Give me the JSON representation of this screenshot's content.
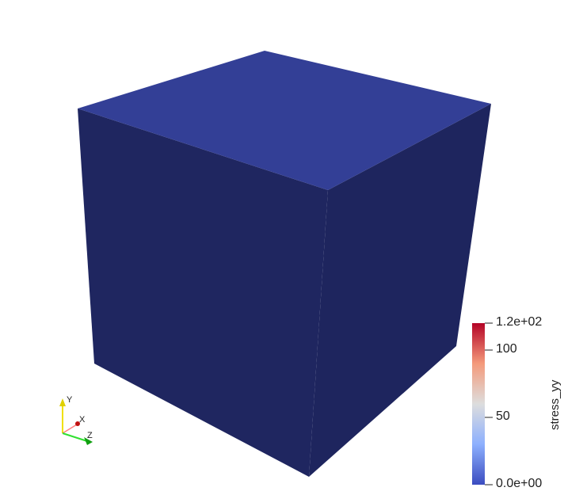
{
  "colorbar": {
    "title": "stress_yy",
    "range": [
      0,
      120
    ],
    "ticks": [
      {
        "value": 120,
        "label": "1.2e+02"
      },
      {
        "value": 100,
        "label": "100"
      },
      {
        "value": 50,
        "label": "50"
      },
      {
        "value": 0,
        "label": "0.0e+00"
      }
    ],
    "colors": [
      "#3b4cc0",
      "#dddddd",
      "#b40426"
    ]
  },
  "axes": {
    "x": "X",
    "y": "Y",
    "z": "Z",
    "colors": {
      "x": "#e02020",
      "y": "#f0e000",
      "z": "#20d020"
    }
  },
  "cube": {
    "top_color": "#333f96",
    "side_color": "#1f2660"
  }
}
